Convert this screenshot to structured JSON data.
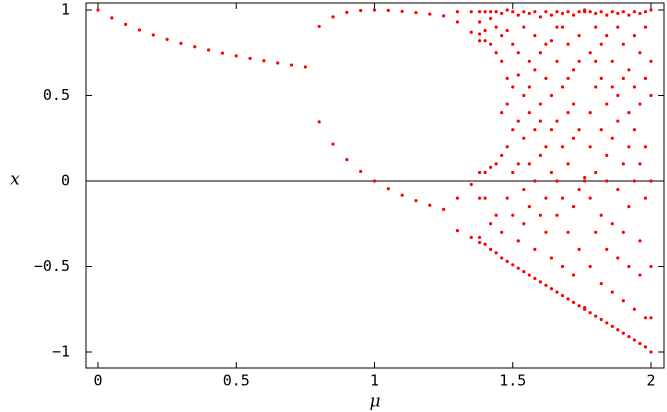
{
  "chart_data": {
    "type": "scatter",
    "x_label": "μ",
    "y_label": "x",
    "color": "#ff0000",
    "xlim": [
      0,
      2
    ],
    "ylim": [
      -1,
      1
    ],
    "xticks": [
      0,
      0.5,
      1,
      1.5,
      2
    ],
    "yticks": [
      {
        "value": -1,
        "label": "−1"
      },
      {
        "value": -0.5,
        "label": "−0.5"
      },
      0,
      0.5,
      1
    ],
    "x": [
      0,
      0.05,
      0.1,
      0.15,
      0.2,
      0.25,
      0.3,
      0.35,
      0.4,
      0.45,
      0.5,
      0.55,
      0.6,
      0.65,
      0.7,
      0.75,
      0.8,
      0.85,
      0.9,
      0.95,
      1.0,
      1.05,
      1.1,
      1.15,
      1.2,
      1.25,
      1.3,
      1.35,
      1.38,
      1.4,
      1.42,
      1.44,
      1.46,
      1.48,
      1.5,
      1.52,
      1.54,
      1.56,
      1.58,
      1.6,
      1.62,
      1.64,
      1.66,
      1.68,
      1.7,
      1.72,
      1.74,
      1.76,
      1.78,
      1.8,
      1.82,
      1.84,
      1.86,
      1.88,
      1.9,
      1.92,
      1.94,
      1.96,
      1.98,
      2.0
    ],
    "values": [
      [
        1
      ],
      [
        0.954
      ],
      [
        0.916
      ],
      [
        0.883
      ],
      [
        0.854
      ],
      [
        0.828
      ],
      [
        0.805
      ],
      [
        0.785
      ],
      [
        0.766
      ],
      [
        0.748
      ],
      [
        0.732
      ],
      [
        0.717
      ],
      [
        0.703
      ],
      [
        0.69
      ],
      [
        0.678
      ],
      [
        0.667
      ],
      [
        0.904,
        0.346
      ],
      [
        0.96,
        0.216
      ],
      [
        0.986,
        0.125
      ],
      [
        0.997,
        0.056
      ],
      [
        1,
        0
      ],
      [
        0.998,
        -0.045
      ],
      [
        0.992,
        -0.083
      ],
      [
        0.985,
        -0.115
      ],
      [
        0.976,
        -0.142
      ],
      [
        0.966,
        -0.166
      ],
      [
        0.99,
        0.93,
        -0.1,
        -0.29
      ],
      [
        0.99,
        0.87,
        -0.02,
        -0.33
      ],
      [
        0.99,
        0.93,
        0.82,
        0.86,
        -0.36,
        -0.33,
        0.05,
        -0.1
      ],
      [
        0.99,
        0.82,
        0.88,
        -0.37,
        -0.1,
        0.05
      ],
      [
        0.99,
        0.95,
        0.8,
        -0.4,
        -0.25,
        0.08
      ],
      [
        0.99,
        0.9,
        0.75,
        -0.42,
        -0.2,
        0.1
      ],
      [
        0.98,
        0.85,
        0.7,
        -0.45,
        -0.3,
        0.15,
        0.4
      ],
      [
        1.0,
        0.88,
        0.6,
        -0.47,
        -0.1,
        0.2,
        0.45
      ],
      [
        0.99,
        0.8,
        0.55,
        -0.49,
        -0.2,
        0.05,
        0.3
      ],
      [
        0.97,
        0.75,
        0.62,
        -0.51,
        -0.35,
        0.1,
        0.35
      ],
      [
        0.99,
        0.9,
        0.5,
        -0.53,
        -0.25,
        -0.05,
        0.25
      ],
      [
        0.98,
        0.7,
        0.4,
        -0.55,
        -0.15,
        0.1,
        0.55
      ],
      [
        0.99,
        0.85,
        0.3,
        -0.57,
        -0.4,
        0.0,
        0.65
      ],
      [
        0.96,
        0.75,
        0.45,
        -0.59,
        -0.2,
        0.15,
        0.35
      ],
      [
        0.99,
        0.6,
        0.2,
        -0.61,
        -0.3,
        -0.1,
        0.8
      ],
      [
        0.97,
        0.82,
        0.5,
        -0.63,
        -0.45,
        0.05,
        0.3
      ],
      [
        0.99,
        0.7,
        0.35,
        -0.65,
        -0.2,
        0.0,
        0.9
      ],
      [
        0.98,
        0.9,
        0.55,
        -0.67,
        -0.5,
        -0.1,
        0.2
      ],
      [
        0.99,
        0.8,
        0.4,
        -0.69,
        -0.3,
        0.1,
        0.6
      ],
      [
        0.97,
        0.65,
        0.25,
        -0.71,
        -0.55,
        -0.15,
        0.45
      ],
      [
        0.99,
        0.85,
        -0.05,
        -0.73,
        -0.4,
        0.3,
        0.7
      ],
      [
        1.0,
        0.99,
        0.0,
        0.02,
        -0.74,
        -0.75
      ],
      [
        0.99,
        0.75,
        0.4,
        -0.77,
        -0.5,
        -0.1,
        0.2
      ],
      [
        0.98,
        0.9,
        0.55,
        -0.79,
        -0.3,
        0.05,
        0.7
      ],
      [
        0.99,
        0.6,
        0.3,
        -0.81,
        -0.6,
        -0.2,
        0.8
      ],
      [
        0.97,
        0.85,
        0.45,
        -0.83,
        -0.4,
        0.0,
        0.15
      ],
      [
        0.99,
        0.7,
        0.25,
        -0.85,
        -0.65,
        -0.25,
        0.55
      ],
      [
        0.98,
        0.9,
        0.5,
        -0.87,
        -0.45,
        -0.05,
        0.35
      ],
      [
        0.99,
        0.8,
        0.1,
        -0.89,
        -0.7,
        -0.3,
        0.6
      ],
      [
        0.97,
        0.65,
        0.4,
        -0.91,
        -0.5,
        -0.15,
        0.2
      ],
      [
        0.99,
        0.85,
        0.3,
        -0.93,
        -0.75,
        0.0,
        0.55
      ],
      [
        0.98,
        0.75,
        0.45,
        -0.95,
        -0.55,
        -0.35,
        0.1
      ],
      [
        0.99,
        0.9,
        0.2,
        -0.97,
        -0.8,
        -0.1,
        0.6
      ],
      [
        1.0,
        0.7,
        0.0,
        -1.0,
        -0.5,
        0.5,
        -0.8
      ]
    ]
  }
}
